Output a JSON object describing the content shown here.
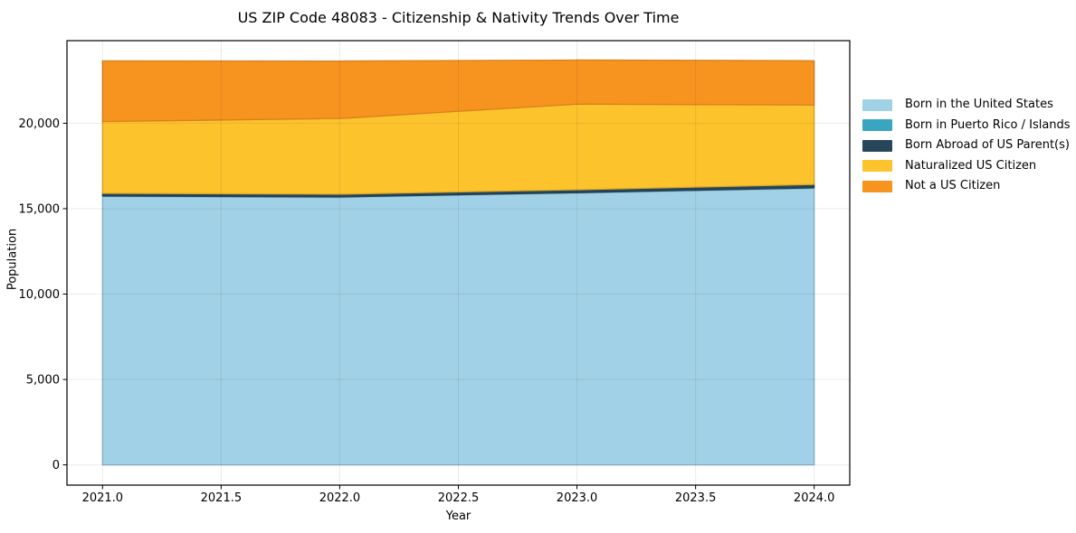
{
  "title": "US ZIP Code 48083 - Citizenship & Nativity Trends Over Time",
  "chart_data": {
    "type": "area",
    "stacked": true,
    "title": "US ZIP Code 48083 - Citizenship & Nativity Trends Over Time",
    "xlabel": "Year",
    "ylabel": "Population",
    "x": [
      2021,
      2022,
      2023,
      2024
    ],
    "series": [
      {
        "name": "Born in the United States",
        "color": "#a1d1e6",
        "values": [
          15700,
          15650,
          15900,
          16180
        ]
      },
      {
        "name": "Born in Puerto Rico / Islands",
        "color": "#3aa5c1",
        "values": [
          40,
          40,
          40,
          40
        ]
      },
      {
        "name": "Born Abroad of US Parent(s)",
        "color": "#27465c",
        "values": [
          160,
          160,
          170,
          200
        ]
      },
      {
        "name": "Naturalized US Citizen",
        "color": "#fdc32d",
        "values": [
          4200,
          4430,
          5010,
          4650
        ]
      },
      {
        "name": "Not a US Citizen",
        "color": "#f79420",
        "values": [
          3550,
          3360,
          2580,
          2590
        ]
      }
    ],
    "xlim": [
      2020.85,
      2024.15
    ],
    "ylim": [
      -1185,
      24835
    ],
    "x_ticks": [
      2021.0,
      2021.5,
      2022.0,
      2022.5,
      2023.0,
      2023.5,
      2024.0
    ],
    "x_tick_labels": [
      "2021.0",
      "2021.5",
      "2022.0",
      "2022.5",
      "2023.0",
      "2023.5",
      "2024.0"
    ],
    "y_ticks": [
      0,
      5000,
      10000,
      15000,
      20000
    ],
    "y_tick_labels": [
      "0",
      "5,000",
      "10,000",
      "15,000",
      "20,000"
    ],
    "grid": true,
    "legend_position": "center-right",
    "axis_color": "#000000",
    "grid_color_over_plot": "rgba(0,0,0,0.08)"
  }
}
